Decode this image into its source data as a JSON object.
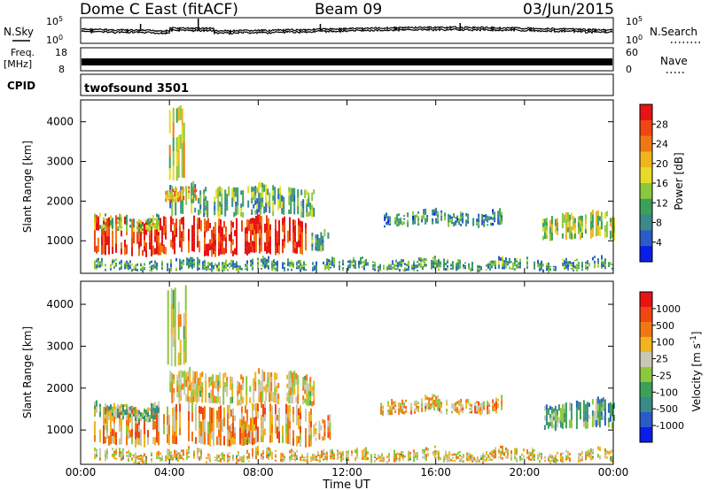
{
  "header": {
    "station": "Dome C East (fitACF)",
    "beam": "Beam 09",
    "date": "03/Jun/2015"
  },
  "params": {
    "nsky_label": "N.Sky",
    "nsearch_label": "N.Search",
    "nsky_ticks": [
      "10^5",
      "10^0"
    ],
    "nsearch_ticks": [
      "10^5",
      "10^0"
    ],
    "freq_label": "Freq.",
    "freq_unit": "[MHz]",
    "freq_ticks": [
      "18",
      "8"
    ],
    "nave_label": "Nave",
    "nave_ticks": [
      "60",
      "0"
    ],
    "cpid_label": "CPID",
    "cpid_value": "twofsound 3501"
  },
  "axes": {
    "xlabel": "Time UT",
    "ylabel": "Slant Range [km]",
    "x_ticks": [
      "00:00",
      "04:00",
      "08:00",
      "12:00",
      "16:00",
      "20:00",
      "00:00"
    ],
    "y_ticks": [
      "1000",
      "2000",
      "3000",
      "4000"
    ]
  },
  "colors": {
    "power_scale": [
      "#0a1ee6",
      "#2a5cc8",
      "#3a8a8a",
      "#3aa05a",
      "#8cc83c",
      "#e6dc28",
      "#f0b41e",
      "#f07814",
      "#f04614",
      "#e61414"
    ],
    "velocity_scale": [
      "#0a1ee6",
      "#2a5cc8",
      "#3a8a8a",
      "#3aa05a",
      "#8cc83c",
      "#c8c8b4",
      "#f0b41e",
      "#f07814",
      "#f04614",
      "#e61414"
    ]
  },
  "chart_data": [
    {
      "type": "heatmap",
      "panel": "power",
      "xlabel": "Time UT",
      "ylabel": "Slant Range [km]",
      "xlim_hours": [
        0,
        24
      ],
      "ylim_km": [
        180,
        4550
      ],
      "colorbar": {
        "label": "Power [dB]",
        "ticks": [
          "28",
          "24",
          "20",
          "16",
          "12",
          "8",
          "4"
        ],
        "range": [
          0,
          32
        ]
      },
      "echo_regions": [
        {
          "t0": 0.6,
          "t1": 10.2,
          "r0": 600,
          "r1": 1500,
          "level": 0.95
        },
        {
          "t0": 0.6,
          "t1": 3.5,
          "r0": 1200,
          "r1": 1550,
          "level": 0.45
        },
        {
          "t0": 4.0,
          "t1": 10.5,
          "r0": 1600,
          "r1": 2300,
          "level": 0.35
        },
        {
          "t0": 3.8,
          "t1": 5.2,
          "r0": 1950,
          "r1": 2200,
          "level": 0.7
        },
        {
          "t0": 10.4,
          "t1": 11.2,
          "r0": 700,
          "r1": 1200,
          "level": 0.3
        },
        {
          "t0": 13.5,
          "t1": 19.0,
          "r0": 1350,
          "r1": 1650,
          "level": 0.25
        },
        {
          "t0": 20.8,
          "t1": 24.0,
          "r0": 1000,
          "r1": 1600,
          "level": 0.5
        },
        {
          "t0": 0.6,
          "t1": 24.0,
          "r0": 200,
          "r1": 420,
          "level": 0.3
        },
        {
          "t0": 3.9,
          "t1": 4.7,
          "r0": 2500,
          "r1": 4300,
          "level": 0.55
        }
      ]
    },
    {
      "type": "heatmap",
      "panel": "velocity",
      "xlabel": "Time UT",
      "ylabel": "Slant Range [km]",
      "xlim_hours": [
        0,
        24
      ],
      "ylim_km": [
        180,
        4550
      ],
      "colorbar": {
        "label": "Velocity [m s^-1]",
        "ticks": [
          "1000",
          "500",
          "100",
          "25",
          "-25",
          "-100",
          "-500",
          "-1000"
        ],
        "range": [
          -1200,
          1200
        ]
      },
      "echo_regions": [
        {
          "t0": 0.6,
          "t1": 10.4,
          "r0": 600,
          "r1": 1500,
          "level": 0.7
        },
        {
          "t0": 0.6,
          "t1": 3.5,
          "r0": 1200,
          "r1": 1550,
          "level": 0.4
        },
        {
          "t0": 4.0,
          "t1": 10.5,
          "r0": 1600,
          "r1": 2300,
          "level": 0.6
        },
        {
          "t0": 10.4,
          "t1": 11.2,
          "r0": 700,
          "r1": 1200,
          "level": 0.7
        },
        {
          "t0": 13.5,
          "t1": 19.0,
          "r0": 1350,
          "r1": 1650,
          "level": 0.65
        },
        {
          "t0": 20.8,
          "t1": 24.0,
          "r0": 1000,
          "r1": 1600,
          "level": 0.35
        },
        {
          "t0": 0.6,
          "t1": 24.0,
          "r0": 200,
          "r1": 420,
          "level": 0.6
        },
        {
          "t0": 3.9,
          "t1": 4.7,
          "r0": 2500,
          "r1": 4300,
          "level": 0.55
        }
      ]
    }
  ]
}
